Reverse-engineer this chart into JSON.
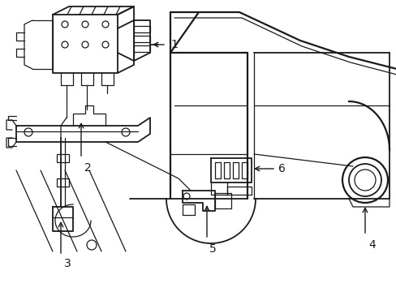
{
  "bg_color": "#ffffff",
  "line_color": "#1a1a1a",
  "lw_main": 1.3,
  "lw_thin": 0.9,
  "lw_thick": 1.6,
  "figsize": [
    4.89,
    3.6
  ],
  "dpi": 100
}
